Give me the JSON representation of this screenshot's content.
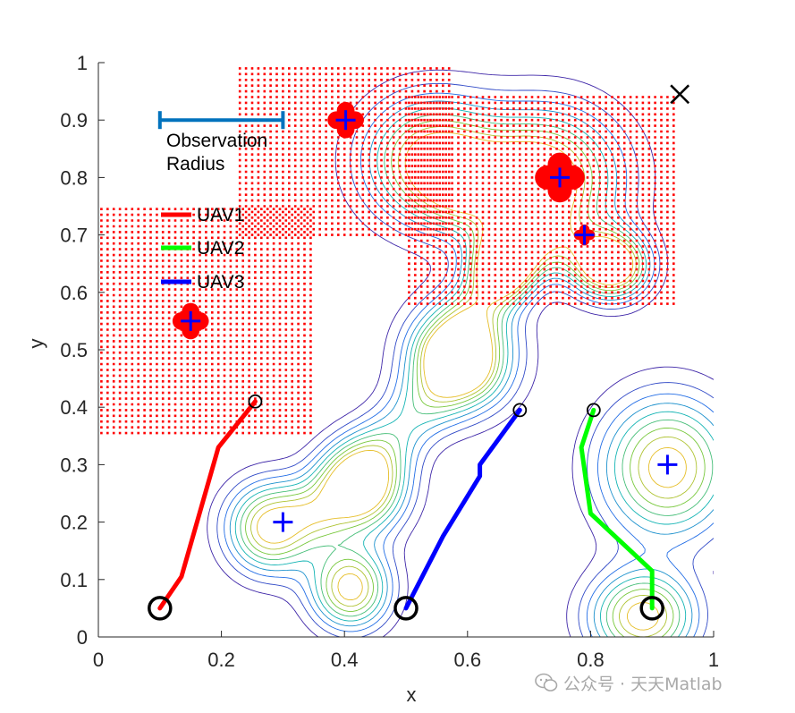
{
  "chart_data": {
    "type": "contour",
    "title": "",
    "xlabel": "x",
    "ylabel": "y",
    "xlim": [
      0,
      1
    ],
    "ylim": [
      0,
      1
    ],
    "xticks": [
      "0",
      "0.2",
      "0.4",
      "0.6",
      "0.8",
      "1"
    ],
    "yticks": [
      "0",
      "0.1",
      "0.2",
      "0.3",
      "0.4",
      "0.5",
      "0.6",
      "0.7",
      "0.8",
      "0.9",
      "1"
    ],
    "contour_peaks": [
      {
        "x": 0.43,
        "y": 0.26,
        "sx": 0.05,
        "sy": 0.055,
        "levels": 8
      },
      {
        "x": 0.41,
        "y": 0.085,
        "sx": 0.045,
        "sy": 0.05,
        "levels": 8
      },
      {
        "x": 0.28,
        "y": 0.19,
        "sx": 0.05,
        "sy": 0.055,
        "levels": 7
      },
      {
        "x": 0.59,
        "y": 0.49,
        "sx": 0.06,
        "sy": 0.065,
        "levels": 9
      },
      {
        "x": 0.54,
        "y": 0.83,
        "sx": 0.075,
        "sy": 0.075,
        "levels": 10
      },
      {
        "x": 0.73,
        "y": 0.8,
        "sx": 0.085,
        "sy": 0.085,
        "levels": 10
      },
      {
        "x": 0.66,
        "y": 0.645,
        "sx": 0.035,
        "sy": 0.04,
        "levels": 5
      },
      {
        "x": 0.84,
        "y": 0.645,
        "sx": 0.04,
        "sy": 0.04,
        "levels": 6
      },
      {
        "x": 0.925,
        "y": 0.295,
        "sx": 0.075,
        "sy": 0.085,
        "levels": 9
      },
      {
        "x": 0.885,
        "y": 0.035,
        "sx": 0.06,
        "sy": 0.055,
        "levels": 8
      }
    ],
    "contour_links": [
      {
        "x1": 0.36,
        "y1": 0.22,
        "x2": 0.58,
        "y2": 0.46,
        "r": 0.04
      },
      {
        "x1": 0.58,
        "y1": 0.5,
        "x2": 0.66,
        "y2": 0.66,
        "r": 0.035
      },
      {
        "x1": 0.6,
        "y1": 0.78,
        "x2": 0.68,
        "y2": 0.78,
        "r": 0.05
      },
      {
        "x1": 0.7,
        "y1": 0.7,
        "x2": 0.8,
        "y2": 0.66,
        "r": 0.04
      }
    ],
    "observed_regions": [
      {
        "x0": 0.23,
        "x1": 0.575,
        "y0": 0.7,
        "y1": 0.995,
        "step": 0.01
      },
      {
        "x0": 0.505,
        "x1": 0.935,
        "y0": 0.58,
        "y1": 0.945,
        "step": 0.01
      },
      {
        "x0": 0.005,
        "x1": 0.345,
        "y0": 0.355,
        "y1": 0.745,
        "step": 0.01
      }
    ],
    "targets": [
      {
        "x": 0.3,
        "y": 0.2,
        "observed": false
      },
      {
        "x": 0.925,
        "y": 0.3,
        "observed": false
      },
      {
        "x": 0.402,
        "y": 0.9,
        "observed": true,
        "size": "large"
      },
      {
        "x": 0.75,
        "y": 0.8,
        "observed": true,
        "size": "xlarge"
      },
      {
        "x": 0.79,
        "y": 0.7,
        "observed": true,
        "size": "small"
      },
      {
        "x": 0.15,
        "y": 0.55,
        "observed": true,
        "size": "large"
      }
    ],
    "goal_marker": {
      "x": 0.945,
      "y": 0.945
    },
    "series": [
      {
        "name": "UAV1",
        "color": "#ff0000",
        "x": [
          0.1,
          0.135,
          0.195,
          0.255
        ],
        "y": [
          0.05,
          0.105,
          0.33,
          0.41
        ]
      },
      {
        "name": "UAV2",
        "color": "#00ff00",
        "x": [
          0.9,
          0.9,
          0.8,
          0.785,
          0.805
        ],
        "y": [
          0.05,
          0.115,
          0.215,
          0.33,
          0.395
        ]
      },
      {
        "name": "UAV3",
        "color": "#0000ff",
        "x": [
          0.5,
          0.56,
          0.62,
          0.62,
          0.685
        ],
        "y": [
          0.05,
          0.175,
          0.28,
          0.3,
          0.395
        ]
      }
    ],
    "start_markers": [
      {
        "x": 0.1,
        "y": 0.05
      },
      {
        "x": 0.5,
        "y": 0.05
      },
      {
        "x": 0.9,
        "y": 0.05
      }
    ],
    "end_markers": [
      {
        "x": 0.255,
        "y": 0.41
      },
      {
        "x": 0.685,
        "y": 0.395
      },
      {
        "x": 0.805,
        "y": 0.395
      }
    ],
    "observation_radius": {
      "x0": 0.1,
      "x1": 0.3,
      "y": 0.9,
      "color": "#0072bd",
      "label_line1": "Observation",
      "label_line2": "Radius"
    },
    "legend": {
      "placement": "upper-left",
      "entries": [
        "UAV1",
        "UAV2",
        "UAV3"
      ]
    }
  },
  "watermark": {
    "text": "公众号 · 天天Matlab"
  }
}
